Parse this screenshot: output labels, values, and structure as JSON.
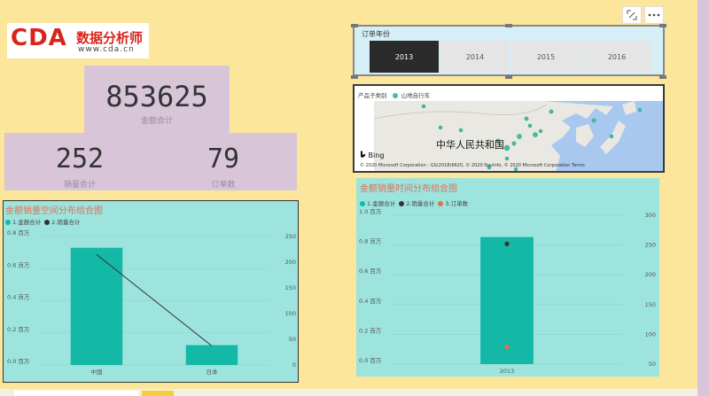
{
  "logo": {
    "main": "CDA",
    "cn": "数据分析师",
    "url": "www.cda.cn"
  },
  "kpis": {
    "amount": {
      "value": "853625",
      "label": "金额合计"
    },
    "sales": {
      "value": "252",
      "label": "销量合计"
    },
    "orders": {
      "value": "79",
      "label": "订单数"
    }
  },
  "visual_header": {
    "focus_icon": "focus-mode-icon",
    "more_icon": "more-options-icon"
  },
  "slicer": {
    "title": "订单年份",
    "options": [
      "2013",
      "2014",
      "2015",
      "2016"
    ],
    "selected": "2013"
  },
  "map": {
    "legend_title": "产品子类别",
    "legend_item": "山地自行车",
    "country_label": "中华人民共和国",
    "bing_label": "Bing",
    "attribution": "© 2020 Microsoft Corporation - GS(2018)6620, © 2020 NavInfo, © 2020 Microsoft Corporation  Terms",
    "colors": {
      "point": "#3fbfa8",
      "water": "#a8c8f0",
      "land": "#e9e8e2"
    }
  },
  "colors": {
    "bar": "#14b8a6",
    "line": "#333333",
    "orders": "#e07050",
    "title": "#e0705a"
  },
  "chart_data": [
    {
      "type": "bar",
      "title": "金额销量空间分布组合图",
      "legend": [
        "1.金额合计",
        "2.销量合计"
      ],
      "categories": [
        "中国",
        "日本"
      ],
      "series": [
        {
          "name": "1.金额合计",
          "axis": "left",
          "values": [
            730000,
            123625
          ]
        },
        {
          "name": "2.销量合计",
          "axis": "right",
          "type": "line",
          "values": [
            215,
            37
          ]
        }
      ],
      "y_left": {
        "ticks": [
          0,
          200000,
          400000,
          600000,
          800000
        ],
        "labels": [
          "0.0 百万",
          "0.2 百万",
          "0.4 百万",
          "0.6 百万",
          "0.8 百万"
        ],
        "max": 800000
      },
      "y_right": {
        "ticks": [
          0,
          50,
          100,
          150,
          200,
          250
        ],
        "max": 250
      }
    },
    {
      "type": "bar",
      "title": "金额销量时间分布组合图",
      "legend": [
        "1.金额合计",
        "2.销量合计",
        "3.订单数"
      ],
      "categories": [
        "2013"
      ],
      "series": [
        {
          "name": "1.金额合计",
          "axis": "left",
          "values": [
            853625
          ]
        },
        {
          "name": "2.销量合计",
          "axis": "right",
          "type": "point",
          "values": [
            252
          ]
        },
        {
          "name": "3.订单数",
          "axis": "right",
          "type": "point",
          "values": [
            79
          ]
        }
      ],
      "y_left": {
        "ticks": [
          0,
          200000,
          400000,
          600000,
          800000,
          1000000
        ],
        "labels": [
          "0.0 百万",
          "0.2 百万",
          "0.4 百万",
          "0.6 百万",
          "0.8 百万",
          "1.0 百万"
        ],
        "max": 1000000
      },
      "y_right": {
        "ticks": [
          50,
          100,
          150,
          200,
          250,
          300
        ],
        "min": 50,
        "max": 300
      }
    }
  ]
}
